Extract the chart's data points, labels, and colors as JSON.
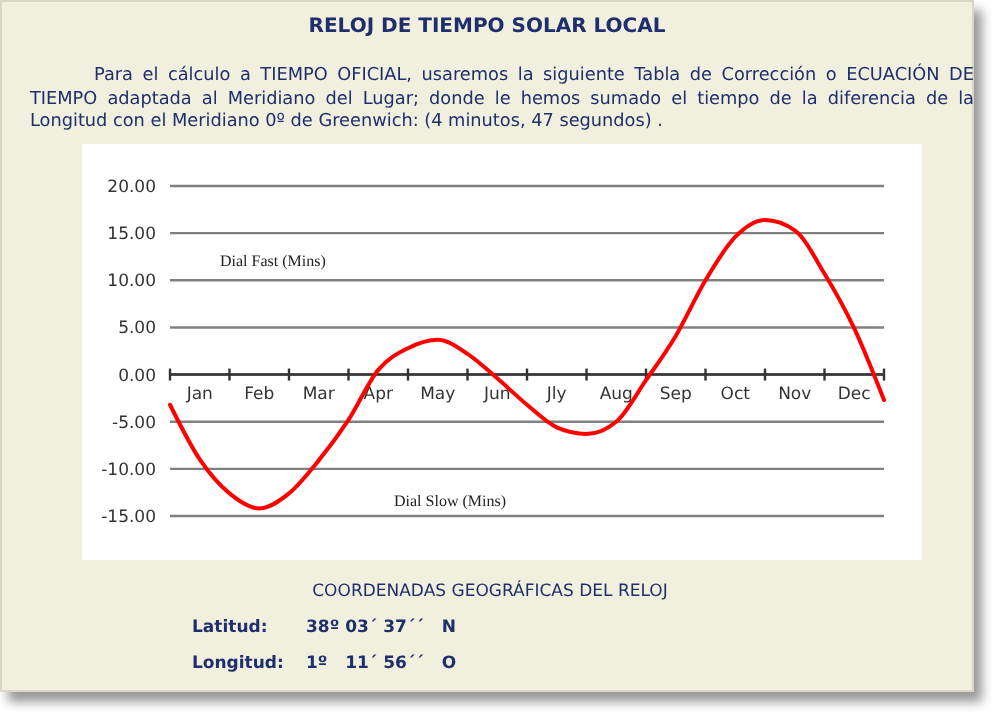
{
  "chart_data": {
    "type": "line",
    "title": "RELOJ DE TIEMPO SOLAR LOCAL",
    "subtitle": "Para el cálculo a TIEMPO OFICIAL, usaremos la siguiente Tabla de Corrección o ECUACIÓN DE TIEMPO adaptada al Meridiano del Lugar; donde le hemos sumado el tiempo de la diferencia de la Longitud con el Meridiano 0º de Greenwich: (4 minutos, 47 segundos) .",
    "categories": [
      null,
      "Jan",
      null,
      "Feb",
      null,
      "Mar",
      null,
      "Apr",
      null,
      "May",
      null,
      "Jun",
      null,
      "Jly",
      null,
      "Aug",
      null,
      "Sep",
      null,
      "Oct",
      null,
      "Nov",
      null,
      "Dec",
      null
    ],
    "series": [
      {
        "color": "#ff0000",
        "values": [
          -3.2,
          -9.0,
          -12.6,
          -14.2,
          -12.6,
          -9.1,
          -4.8,
          0.5,
          2.8,
          3.7,
          2.2,
          -0.4,
          -3.2,
          -5.6,
          -6.3,
          -5.0,
          -0.6,
          4.1,
          10.0,
          14.6,
          16.4,
          15.3,
          10.7,
          4.9,
          -2.7
        ]
      }
    ],
    "ylim": [
      -15,
      20
    ],
    "yticks": [
      {
        "value": -15,
        "label": "-15.00"
      },
      {
        "value": -10,
        "label": "-10.00"
      },
      {
        "value": -5,
        "label": "-5.00"
      },
      {
        "value": 0,
        "label": "0.00"
      },
      {
        "value": 5,
        "label": "5.00"
      },
      {
        "value": 10,
        "label": "10.00"
      },
      {
        "value": 15,
        "label": "15.00"
      },
      {
        "value": 20,
        "label": "20.00"
      }
    ],
    "grid": "y",
    "marker": "none",
    "line_style": "solid",
    "annotations": [
      "Dial Fast (Mins)",
      "Dial Slow (Mins)",
      "COORDENADAS GEOGRÁFICAS DEL RELOJ",
      "Latitud:",
      "38º 03´ 37´´   N",
      "Longitud:",
      "1º   11´ 56´´   O"
    ]
  }
}
